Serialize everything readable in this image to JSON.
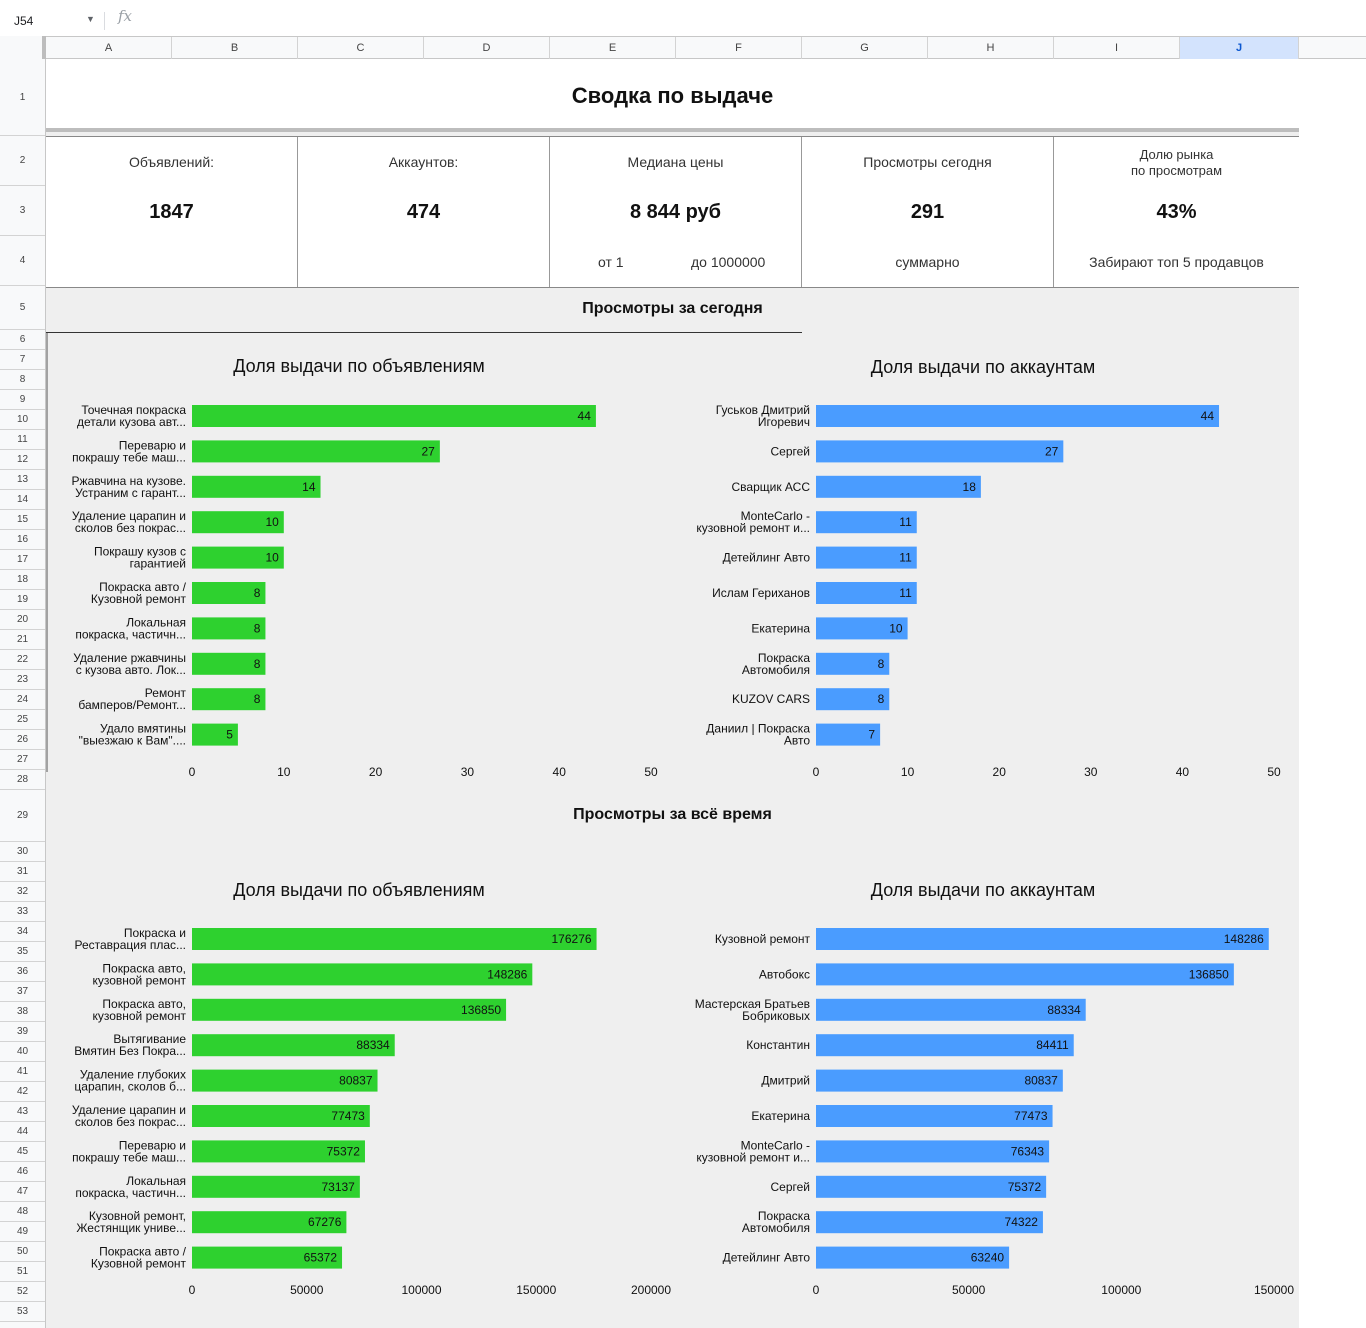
{
  "formula_bar": {
    "cell_ref": "J54",
    "fx_label": "fx"
  },
  "columns": [
    "A",
    "B",
    "C",
    "D",
    "E",
    "F",
    "G",
    "H",
    "I",
    "J"
  ],
  "selected_column": "J",
  "rows": [
    "1",
    "2",
    "3",
    "4",
    "5",
    "6",
    "7",
    "8",
    "9",
    "10",
    "11",
    "12",
    "13",
    "14",
    "15",
    "16",
    "17",
    "18",
    "19",
    "20",
    "21",
    "22",
    "23",
    "24",
    "25",
    "26",
    "27",
    "28",
    "29",
    "30",
    "31",
    "32",
    "33",
    "34",
    "35",
    "36",
    "37",
    "38",
    "39",
    "40",
    "41",
    "42",
    "43",
    "44",
    "45",
    "46",
    "47",
    "48",
    "49",
    "50",
    "51",
    "52",
    "53"
  ],
  "title": "Сводка по выдаче",
  "kpis": [
    {
      "label": "Объявлений:",
      "value": "1847"
    },
    {
      "label": "Аккаунтов:",
      "value": "474"
    },
    {
      "label": "Медиана цены",
      "value": "8 844 руб",
      "sub_left": "от 1",
      "sub_right": "до 1000000"
    },
    {
      "label": "Просмотры сегодня",
      "value": "291",
      "sub": "суммарно"
    },
    {
      "label_line1": "Долю рынка",
      "label_line2": "по просмотрам",
      "value": "43%",
      "sub": "Забирают топ 5 продавцов"
    }
  ],
  "section_today": "Просмотры за сегодня",
  "section_all": "Просмотры за всё время",
  "colors": {
    "green": "#2ed12f",
    "blue": "#4a9cff",
    "selected_header": "#d3e3fd"
  },
  "chart_data": [
    {
      "type": "bar",
      "orientation": "horizontal",
      "title": "Доля выдачи по объявлениям",
      "color": "#2ed12f",
      "categories": [
        [
          "Точечная покраска",
          "детали кузова авт..."
        ],
        [
          "Переварю и",
          "покрашу тебе маш..."
        ],
        [
          "Ржавчина на кузове.",
          "Устраним с гарант..."
        ],
        [
          "Удаление царапин и",
          "сколов без покрас..."
        ],
        [
          "Покрашу кузов с",
          "гарантией"
        ],
        [
          "Покраска авто /",
          "Кузовной ремонт"
        ],
        [
          "Локальная",
          "покраска, частичн..."
        ],
        [
          "Удаление ржавчины",
          "с кузова авто. Лок..."
        ],
        [
          "Ремонт",
          "бамперов/Ремонт..."
        ],
        [
          "Удало вмятины",
          "\"выезжаю к Вам\"...."
        ]
      ],
      "values": [
        44,
        27,
        14,
        10,
        10,
        8,
        8,
        8,
        8,
        5
      ],
      "xlim": [
        0,
        50
      ],
      "ticks": [
        "0",
        "10",
        "20",
        "30",
        "40",
        "50"
      ]
    },
    {
      "type": "bar",
      "orientation": "horizontal",
      "title": "Доля выдачи по аккаунтам",
      "color": "#4a9cff",
      "categories": [
        [
          "Гуськов Дмитрий",
          "Игоревич"
        ],
        [
          "Сергей"
        ],
        [
          "Сварщик АСС"
        ],
        [
          "MonteCarlo -",
          "кузовной ремонт и..."
        ],
        [
          "Детейлинг Авто"
        ],
        [
          "Ислам Гериханов"
        ],
        [
          "Екатерина"
        ],
        [
          "Покраска",
          "Автомобиля"
        ],
        [
          "KUZOV CARS"
        ],
        [
          "Даниил | Покраска",
          "Авто"
        ]
      ],
      "values": [
        44,
        27,
        18,
        11,
        11,
        11,
        10,
        8,
        8,
        7
      ],
      "xlim": [
        0,
        50
      ],
      "ticks": [
        "0",
        "10",
        "20",
        "30",
        "40",
        "50"
      ]
    },
    {
      "type": "bar",
      "orientation": "horizontal",
      "title": "Доля выдачи по объявлениям",
      "color": "#2ed12f",
      "categories": [
        [
          "Покраска и",
          "Реставрация плас..."
        ],
        [
          "Покраска авто,",
          "кузовной ремонт"
        ],
        [
          "Покраска авто,",
          "кузовной ремонт"
        ],
        [
          "Вытягивание",
          "Вмятин Без Покра..."
        ],
        [
          "Удаление глубоких",
          "царапин, сколов б..."
        ],
        [
          "Удаление царапин и",
          "сколов без покрас..."
        ],
        [
          "Переварю и",
          "покрашу тебе маш..."
        ],
        [
          "Локальная",
          "покраска, частичн..."
        ],
        [
          "Кузовной ремонт,",
          "Жестянщик униве..."
        ],
        [
          "Покраска авто /",
          "Кузовной ремонт"
        ]
      ],
      "values": [
        176276,
        148286,
        136850,
        88334,
        80837,
        77473,
        75372,
        73137,
        67276,
        65372
      ],
      "xlim": [
        0,
        200000
      ],
      "ticks": [
        "0",
        "50000",
        "100000",
        "150000",
        "200000"
      ]
    },
    {
      "type": "bar",
      "orientation": "horizontal",
      "title": "Доля выдачи по аккаунтам",
      "color": "#4a9cff",
      "categories": [
        [
          "Кузовной ремонт"
        ],
        [
          "Автобокс"
        ],
        [
          "Мастерская Братьев",
          "Бобриковых"
        ],
        [
          "Константин"
        ],
        [
          "Дмитрий"
        ],
        [
          "Екатерина"
        ],
        [
          "MonteCarlo -",
          "кузовной ремонт и..."
        ],
        [
          "Сергей"
        ],
        [
          "Покраска",
          "Автомобиля"
        ],
        [
          "Детейлинг Авто"
        ]
      ],
      "values": [
        148286,
        136850,
        88334,
        84411,
        80837,
        77473,
        76343,
        75372,
        74322,
        63240
      ],
      "xlim": [
        0,
        150000
      ],
      "ticks": [
        "0",
        "50000",
        "100000",
        "150000"
      ]
    }
  ]
}
